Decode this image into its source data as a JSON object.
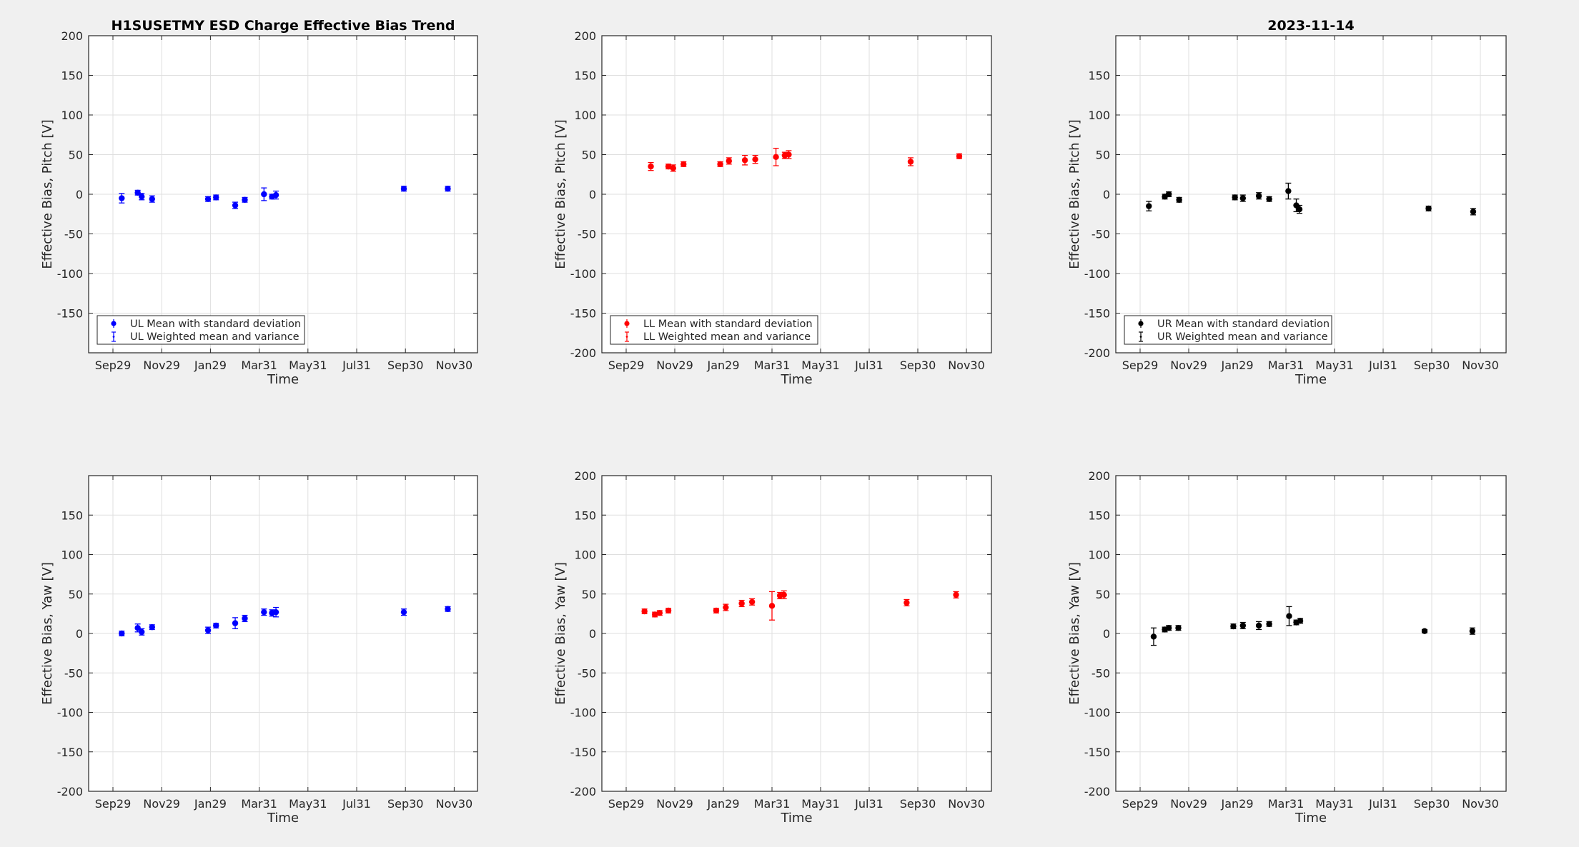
{
  "panels_layout": "2 rows x 3 columns",
  "titles": {
    "left": "H1SUSETMY ESD Charge Effective Bias Trend",
    "right": "2023-11-14"
  },
  "colors": {
    "UL": "#0000ff",
    "LL": "#ff0000",
    "UR": "#000000"
  },
  "chart_data": [
    {
      "type": "scatter",
      "title": "H1SUSETMY ESD Charge Effective Bias Trend",
      "xlabel": "Time",
      "ylabel": "Effective Bias, Pitch [V]",
      "ylim": [
        -200,
        200
      ],
      "yticks": [
        "-150",
        "-100",
        "-50",
        "0",
        "50",
        "100",
        "150",
        "200"
      ],
      "xticks": [
        "Sep29",
        "Nov29",
        "Jan29",
        "Mar31",
        "May31",
        "Jul31",
        "Sep30",
        "Nov30"
      ],
      "grid": true,
      "legend": [
        "UL Mean with standard deviation",
        "UL Weighted mean and variance"
      ],
      "legend_position": "bottom-left",
      "color": "#0000ff",
      "series": [
        {
          "x": [
            "Oct 10",
            "Oct 30",
            "Nov 4",
            "Nov 17",
            "Jan 26",
            "Feb 5",
            "Mar 1",
            "Mar 13",
            "Apr 6",
            "Apr 16",
            "Apr 21",
            "Sep 28",
            "Nov 22"
          ],
          "y": [
            -5,
            2,
            -3,
            -6,
            -6,
            -4,
            -14,
            -7,
            0,
            -3,
            -1,
            7,
            7
          ],
          "err": [
            6,
            3,
            4,
            4,
            3,
            3,
            4,
            3,
            8,
            3,
            5,
            3,
            3
          ]
        }
      ]
    },
    {
      "type": "scatter",
      "title": "",
      "xlabel": "Time",
      "ylabel": "Effective Bias, Pitch [V]",
      "ylim": [
        -200,
        200
      ],
      "yticks": [
        "-200",
        "-150",
        "-100",
        "-50",
        "0",
        "50",
        "100",
        "150",
        "200"
      ],
      "xticks": [
        "Sep29",
        "Nov29",
        "Jan29",
        "Mar31",
        "May31",
        "Jul31",
        "Sep30",
        "Nov30"
      ],
      "grid": true,
      "legend": [
        "LL Mean with standard deviation",
        "LL Weighted mean and variance"
      ],
      "legend_position": "bottom-left",
      "color": "#ff0000",
      "series": [
        {
          "x": [
            "Oct 30",
            "Nov 21",
            "Nov 27",
            "Dec 10",
            "Jan 25",
            "Feb 5",
            "Feb 25",
            "Mar 10",
            "Apr 5",
            "Apr 16",
            "Apr 21",
            "Sep 21",
            "Nov 21"
          ],
          "y": [
            35,
            35,
            33,
            38,
            38,
            42,
            43,
            44,
            47,
            49,
            50,
            41,
            48
          ],
          "err": [
            5,
            3,
            4,
            3,
            3,
            4,
            6,
            5,
            11,
            4,
            5,
            5,
            3
          ]
        }
      ]
    },
    {
      "type": "scatter",
      "title": "2023-11-14",
      "xlabel": "Time",
      "ylabel": "Effective Bias, Pitch [V]",
      "ylim": [
        -200,
        200
      ],
      "yticks": [
        "-200",
        "-150",
        "-100",
        "-50",
        "0",
        "50",
        "100",
        "150"
      ],
      "xticks": [
        "Sep29",
        "Nov29",
        "Jan29",
        "Mar31",
        "May31",
        "Jul31",
        "Sep30",
        "Nov30"
      ],
      "grid": true,
      "legend": [
        "UR Mean with standard deviation",
        "UR Weighted mean and variance"
      ],
      "legend_position": "bottom-left",
      "color": "#000000",
      "series": [
        {
          "x": [
            "Oct 10",
            "Oct 30",
            "Nov 4",
            "Nov 17",
            "Jan 26",
            "Feb 5",
            "Feb 25",
            "Mar 10",
            "Apr 3",
            "Apr 13",
            "Apr 17",
            "Sep 26",
            "Nov 21"
          ],
          "y": [
            -15,
            -3,
            0,
            -7,
            -4,
            -5,
            -2,
            -6,
            4,
            -14,
            -19,
            -18,
            -22
          ],
          "err": [
            6,
            3,
            3,
            3,
            3,
            4,
            4,
            3,
            10,
            8,
            5,
            3,
            4
          ]
        }
      ]
    },
    {
      "type": "scatter",
      "title": "",
      "xlabel": "Time",
      "ylabel": "Effective Bias, Yaw [V]",
      "ylim": [
        -200,
        200
      ],
      "yticks": [
        "-200",
        "-150",
        "-100",
        "-50",
        "0",
        "50",
        "100",
        "150"
      ],
      "xticks": [
        "Sep29",
        "Nov29",
        "Jan29",
        "Mar31",
        "May31",
        "Jul31",
        "Sep30",
        "Nov30"
      ],
      "grid": true,
      "color": "#0000ff",
      "series": [
        {
          "x": [
            "Oct 10",
            "Oct 30",
            "Nov 4",
            "Nov 17",
            "Jan 26",
            "Feb 5",
            "Mar 1",
            "Mar 13",
            "Apr 6",
            "Apr 16",
            "Apr 21",
            "Sep 28",
            "Nov 22"
          ],
          "y": [
            0,
            7,
            2,
            8,
            4,
            10,
            13,
            19,
            27,
            26,
            27,
            27,
            31
          ],
          "err": [
            3,
            5,
            4,
            3,
            4,
            3,
            7,
            4,
            4,
            4,
            6,
            4,
            3
          ]
        }
      ]
    },
    {
      "type": "scatter",
      "title": "",
      "xlabel": "Time",
      "ylabel": "Effective Bias, Yaw [V]",
      "ylim": [
        -200,
        200
      ],
      "yticks": [
        "-200",
        "-150",
        "-100",
        "-50",
        "0",
        "50",
        "100",
        "150",
        "200"
      ],
      "xticks": [
        "Sep29",
        "Nov29",
        "Jan29",
        "Mar31",
        "May31",
        "Jul31",
        "Sep30",
        "Nov30"
      ],
      "grid": true,
      "color": "#ff0000",
      "series": [
        {
          "x": [
            "Oct 22",
            "Nov 4",
            "Nov 10",
            "Nov 21",
            "Jan 20",
            "Feb 1",
            "Feb 21",
            "Mar 6",
            "Mar 31",
            "Apr 10",
            "Apr 15",
            "Sep 16",
            "Nov 17"
          ],
          "y": [
            28,
            24,
            26,
            29,
            29,
            33,
            38,
            40,
            35,
            48,
            49,
            39,
            49
          ],
          "err": [
            3,
            3,
            3,
            3,
            3,
            4,
            4,
            4,
            18,
            4,
            5,
            4,
            4
          ]
        }
      ]
    },
    {
      "type": "scatter",
      "title": "",
      "xlabel": "Time",
      "ylabel": "Effective Bias, Yaw [V]",
      "ylim": [
        -200,
        200
      ],
      "yticks": [
        "-200",
        "-150",
        "-100",
        "-50",
        "0",
        "50",
        "100",
        "150",
        "200"
      ],
      "xticks": [
        "Sep29",
        "Nov29",
        "Jan29",
        "Mar31",
        "May31",
        "Jul31",
        "Sep30",
        "Nov30"
      ],
      "grid": true,
      "color": "#000000",
      "series": [
        {
          "x": [
            "Oct 16",
            "Oct 30",
            "Nov 4",
            "Nov 16",
            "Jan 24",
            "Feb 5",
            "Feb 25",
            "Mar 10",
            "Apr 4",
            "Apr 13",
            "Apr 18",
            "Sep 21",
            "Nov 20"
          ],
          "y": [
            -4,
            5,
            7,
            7,
            9,
            10,
            10,
            12,
            22,
            14,
            16,
            3,
            3
          ],
          "err": [
            11,
            3,
            3,
            3,
            3,
            4,
            5,
            3,
            12,
            3,
            3,
            2,
            4
          ]
        }
      ]
    }
  ]
}
